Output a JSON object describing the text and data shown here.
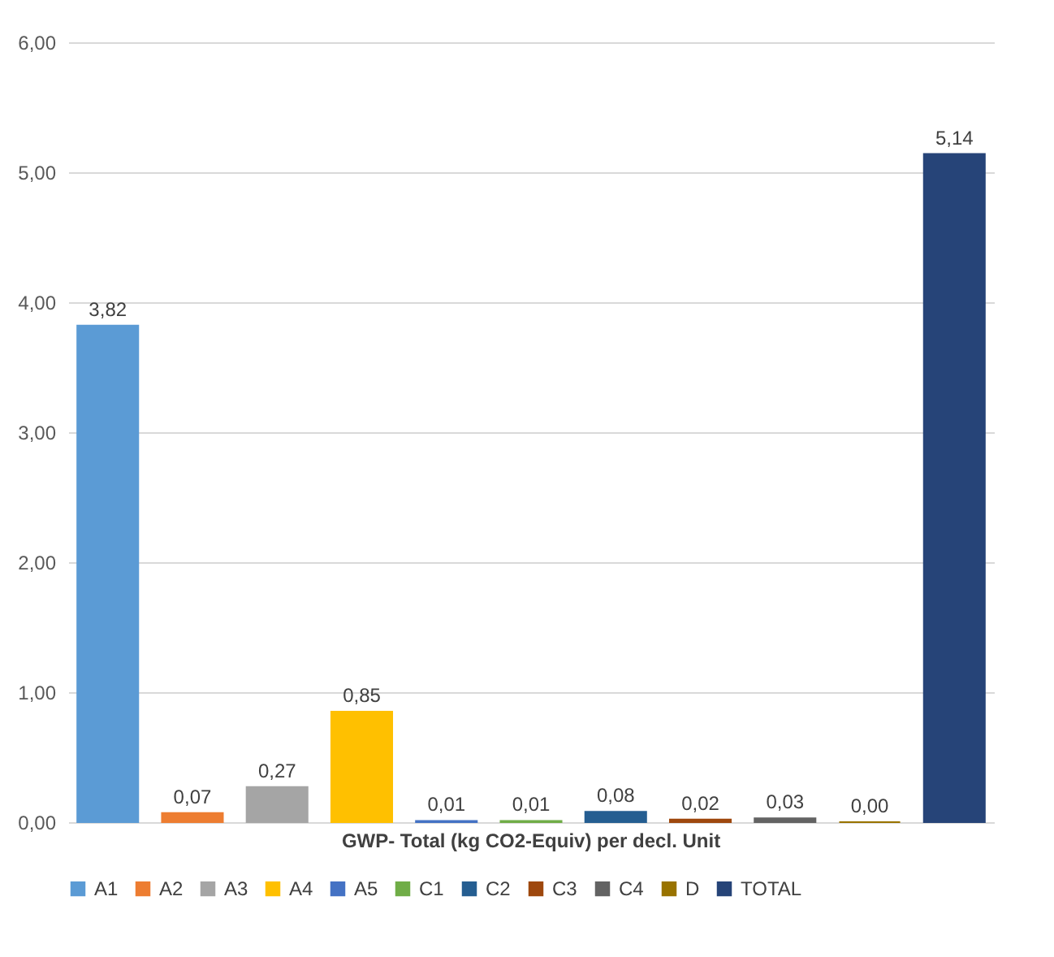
{
  "chart_data": {
    "type": "bar",
    "categories": [
      "GWP- Total (kg CO2-Equiv) per decl. Unit"
    ],
    "series": [
      {
        "name": "A1",
        "color": "#5b9bd5",
        "values": [
          3.82
        ],
        "value_labels": [
          "3,82"
        ]
      },
      {
        "name": "A2",
        "color": "#ed7d31",
        "values": [
          0.07
        ],
        "value_labels": [
          "0,07"
        ]
      },
      {
        "name": "A3",
        "color": "#a5a5a5",
        "values": [
          0.27
        ],
        "value_labels": [
          "0,27"
        ]
      },
      {
        "name": "A4",
        "color": "#ffc000",
        "values": [
          0.85
        ],
        "value_labels": [
          "0,85"
        ]
      },
      {
        "name": "A5",
        "color": "#4472c4",
        "values": [
          0.01
        ],
        "value_labels": [
          "0,01"
        ]
      },
      {
        "name": "C1",
        "color": "#70ad47",
        "values": [
          0.01
        ],
        "value_labels": [
          "0,01"
        ]
      },
      {
        "name": "C2",
        "color": "#255e91",
        "values": [
          0.08
        ],
        "value_labels": [
          "0,08"
        ]
      },
      {
        "name": "C3",
        "color": "#9e480e",
        "values": [
          0.02
        ],
        "value_labels": [
          "0,02"
        ]
      },
      {
        "name": "C4",
        "color": "#636363",
        "values": [
          0.03
        ],
        "value_labels": [
          "0,03"
        ]
      },
      {
        "name": "D",
        "color": "#997300",
        "values": [
          0.0
        ],
        "value_labels": [
          "0,00"
        ]
      },
      {
        "name": "TOTAL",
        "color": "#264478",
        "values": [
          5.14
        ],
        "value_labels": [
          "5,14"
        ]
      }
    ],
    "ylim": [
      0,
      6
    ],
    "yticks": [
      {
        "value": 0,
        "label": "0,00"
      },
      {
        "value": 1,
        "label": "1,00"
      },
      {
        "value": 2,
        "label": "2,00"
      },
      {
        "value": 3,
        "label": "3,00"
      },
      {
        "value": 4,
        "label": "4,00"
      },
      {
        "value": 5,
        "label": "5,00"
      },
      {
        "value": 6,
        "label": "6,00"
      }
    ],
    "grid": "y",
    "legend": "bottom"
  }
}
